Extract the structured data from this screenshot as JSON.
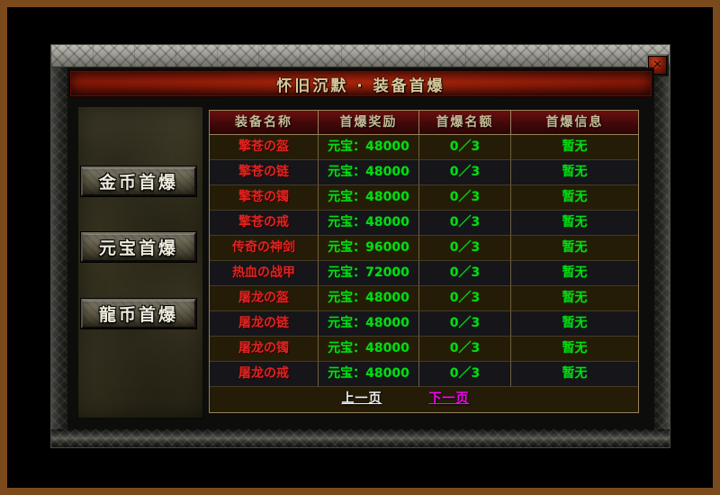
{
  "window": {
    "title": "怀旧沉默 · 装备首爆",
    "close_glyph": "✕"
  },
  "sidebar": {
    "buttons": [
      {
        "label": "金币首爆"
      },
      {
        "label": "元宝首爆"
      },
      {
        "label": "龍币首爆"
      }
    ]
  },
  "table": {
    "columns": [
      "装备名称",
      "首爆奖励",
      "首爆名额",
      "首爆信息"
    ],
    "rows": [
      {
        "name": "擎苍の盔",
        "reward": "元宝：48000",
        "quota": "0／3",
        "info": "暂无"
      },
      {
        "name": "擎苍の链",
        "reward": "元宝：48000",
        "quota": "0／3",
        "info": "暂无"
      },
      {
        "name": "擎苍の镯",
        "reward": "元宝：48000",
        "quota": "0／3",
        "info": "暂无"
      },
      {
        "name": "擎苍の戒",
        "reward": "元宝：48000",
        "quota": "0／3",
        "info": "暂无"
      },
      {
        "name": "传奇の神剑",
        "reward": "元宝：96000",
        "quota": "0／3",
        "info": "暂无"
      },
      {
        "name": "热血の战甲",
        "reward": "元宝：72000",
        "quota": "0／3",
        "info": "暂无"
      },
      {
        "name": "屠龙の盔",
        "reward": "元宝：48000",
        "quota": "0／3",
        "info": "暂无"
      },
      {
        "name": "屠龙の链",
        "reward": "元宝：48000",
        "quota": "0／3",
        "info": "暂无"
      },
      {
        "name": "屠龙の镯",
        "reward": "元宝：48000",
        "quota": "0／3",
        "info": "暂无"
      },
      {
        "name": "屠龙の戒",
        "reward": "元宝：48000",
        "quota": "0／3",
        "info": "暂无"
      }
    ]
  },
  "pagination": {
    "prev": "上一页",
    "next": "下一页"
  },
  "colors": {
    "titlebar_red": "#8e1a08",
    "header_red": "#4a0808",
    "name_red": "#e02420",
    "value_green": "#00dd11",
    "prev_link": "#f0f0f0",
    "next_link": "#ff00ff",
    "outer_border_brown": "#7a4a1d"
  }
}
